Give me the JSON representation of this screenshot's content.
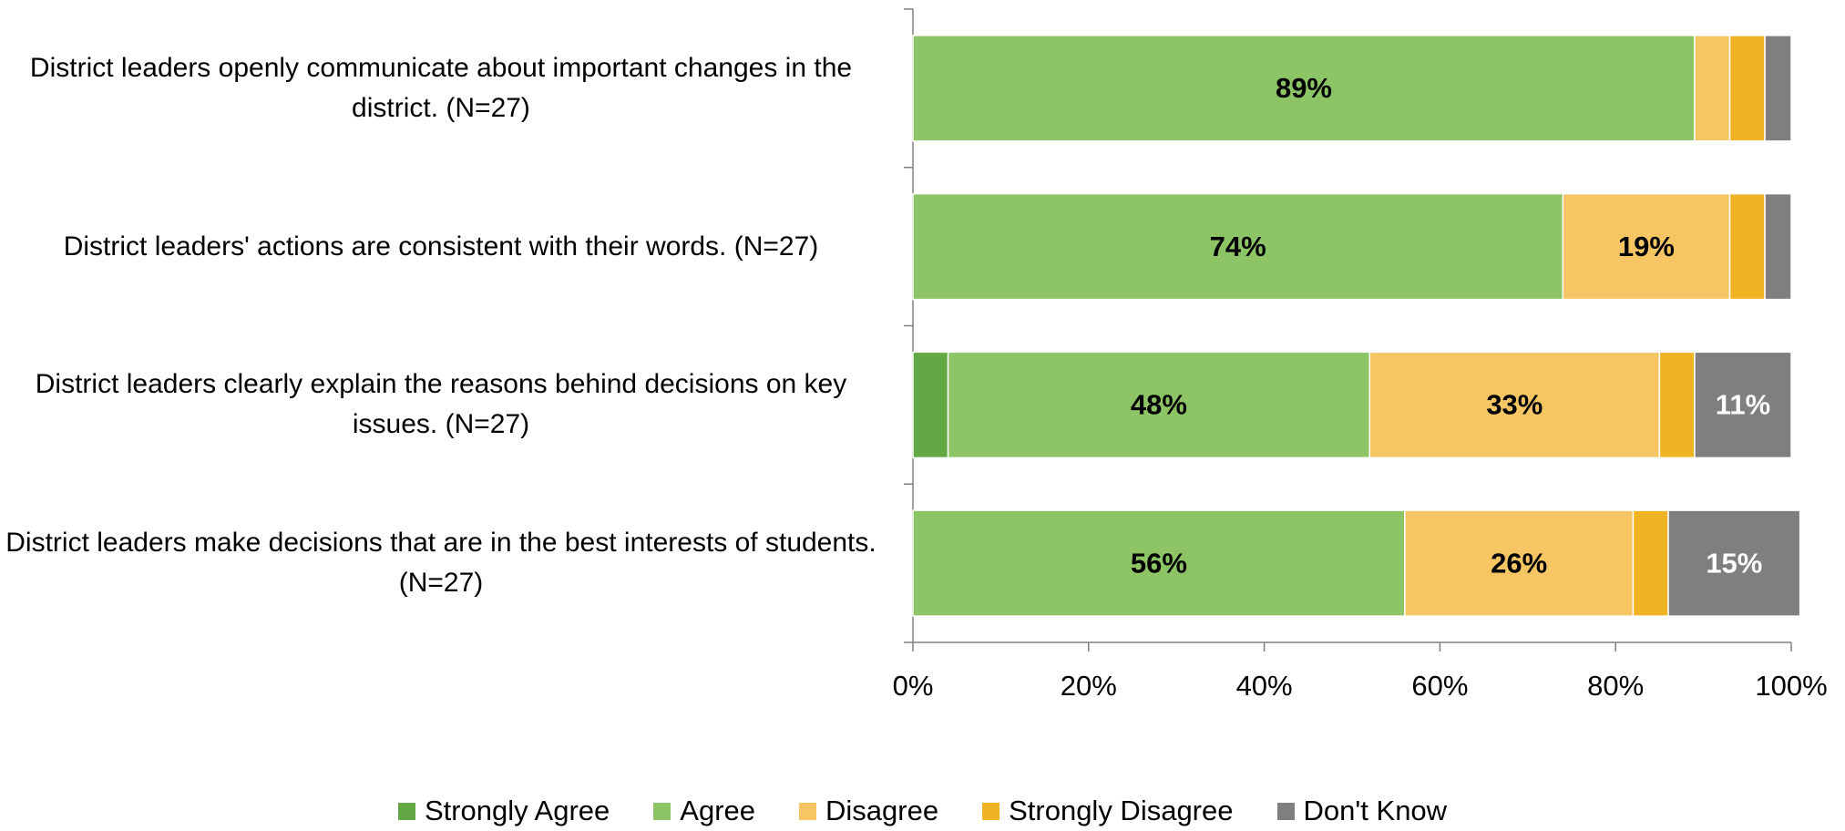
{
  "chart_data": {
    "type": "stacked-bar-horizontal",
    "categories": [
      "District leaders openly communicate about important changes in the district. (N=27)",
      "District leaders' actions are consistent with their words. (N=27)",
      "District leaders clearly explain the reasons behind decisions on key issues. (N=27)",
      "District leaders make decisions that are in the best interests of students. (N=27)"
    ],
    "series": [
      {
        "name": "Strongly Agree",
        "color": "#62a845",
        "values": [
          0,
          0,
          4,
          0
        ],
        "value_labels": [
          null,
          null,
          null,
          null
        ]
      },
      {
        "name": "Agree",
        "color": "#8dc466",
        "values": [
          89,
          74,
          48,
          56
        ],
        "value_labels": [
          "89%",
          "74%",
          "48%",
          "56%"
        ]
      },
      {
        "name": "Disagree",
        "color": "#f6c564",
        "values": [
          4,
          19,
          33,
          26
        ],
        "value_labels": [
          null,
          "19%",
          "33%",
          "26%"
        ]
      },
      {
        "name": "Strongly Disagree",
        "color": "#f0b323",
        "values": [
          4,
          4,
          4,
          4
        ],
        "value_labels": [
          null,
          null,
          null,
          null
        ]
      },
      {
        "name": "Don't Know",
        "color": "#7f7f7f",
        "values": [
          3,
          3,
          11,
          15
        ],
        "value_labels": [
          null,
          null,
          "11%",
          "15%"
        ]
      }
    ],
    "xlim": [
      0,
      100
    ],
    "xticks": [
      {
        "value": 0,
        "label": "0%"
      },
      {
        "value": 20,
        "label": "20%"
      },
      {
        "value": 40,
        "label": "40%"
      },
      {
        "value": 60,
        "label": "60%"
      },
      {
        "value": 80,
        "label": "80%"
      },
      {
        "value": 100,
        "label": "100%"
      }
    ],
    "legend": "bottom"
  }
}
